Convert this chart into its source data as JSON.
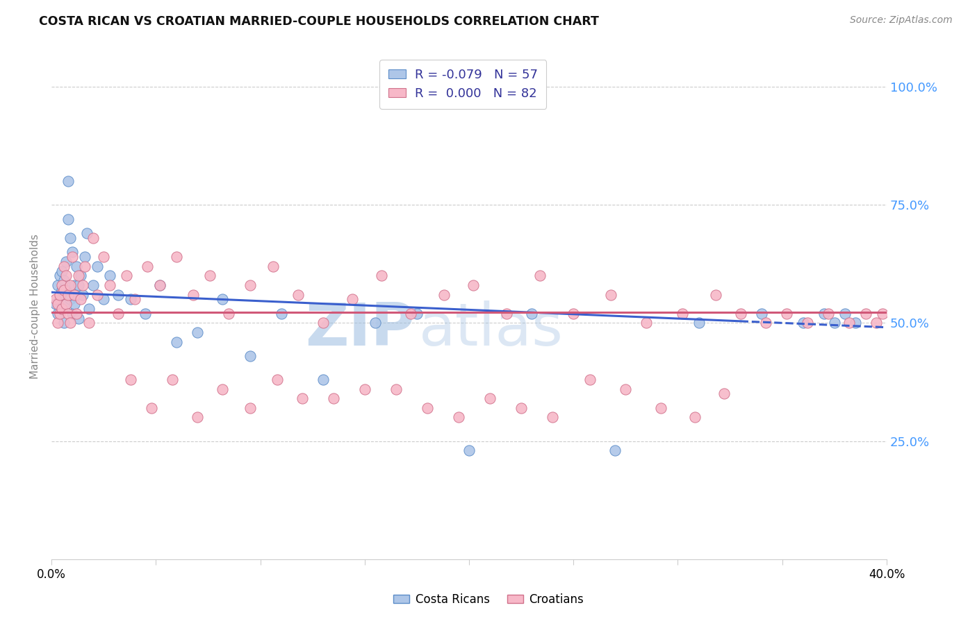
{
  "title": "COSTA RICAN VS CROATIAN MARRIED-COUPLE HOUSEHOLDS CORRELATION CHART",
  "source": "Source: ZipAtlas.com",
  "ylabel": "Married-couple Households",
  "yticks_labels": [
    "100.0%",
    "75.0%",
    "50.0%",
    "25.0%"
  ],
  "ytick_vals": [
    1.0,
    0.75,
    0.5,
    0.25
  ],
  "xmin": 0.0,
  "xmax": 0.4,
  "ymin": 0.0,
  "ymax": 1.07,
  "legend_r1": "R = -0.079",
  "legend_n1": "N = 57",
  "legend_r2": "R =  0.000",
  "legend_n2": "N = 82",
  "color_blue_fill": "#aec6e8",
  "color_blue_edge": "#5b8cc8",
  "color_pink_fill": "#f7b8c8",
  "color_pink_edge": "#d0708a",
  "trend_blue_color": "#3a5fcd",
  "trend_pink_color": "#d05878",
  "grid_color": "#cccccc",
  "watermark_zip": "ZIP",
  "watermark_atlas": "atlas",
  "watermark_color": "#9bbde0",
  "cr_x": [
    0.002,
    0.003,
    0.003,
    0.004,
    0.004,
    0.005,
    0.005,
    0.005,
    0.006,
    0.006,
    0.006,
    0.007,
    0.007,
    0.007,
    0.008,
    0.008,
    0.009,
    0.009,
    0.01,
    0.01,
    0.011,
    0.011,
    0.012,
    0.012,
    0.013,
    0.013,
    0.014,
    0.015,
    0.016,
    0.017,
    0.018,
    0.02,
    0.022,
    0.025,
    0.028,
    0.032,
    0.038,
    0.045,
    0.052,
    0.06,
    0.07,
    0.082,
    0.095,
    0.11,
    0.13,
    0.155,
    0.175,
    0.2,
    0.23,
    0.27,
    0.31,
    0.34,
    0.36,
    0.37,
    0.375,
    0.38,
    0.385
  ],
  "cr_y": [
    0.54,
    0.52,
    0.58,
    0.6,
    0.55,
    0.57,
    0.61,
    0.53,
    0.56,
    0.59,
    0.5,
    0.63,
    0.54,
    0.57,
    0.8,
    0.72,
    0.55,
    0.68,
    0.52,
    0.65,
    0.58,
    0.54,
    0.56,
    0.62,
    0.51,
    0.58,
    0.6,
    0.56,
    0.64,
    0.69,
    0.53,
    0.58,
    0.62,
    0.55,
    0.6,
    0.56,
    0.55,
    0.52,
    0.58,
    0.46,
    0.48,
    0.55,
    0.43,
    0.52,
    0.38,
    0.5,
    0.52,
    0.23,
    0.52,
    0.23,
    0.5,
    0.52,
    0.5,
    0.52,
    0.5,
    0.52,
    0.5
  ],
  "hr_x": [
    0.002,
    0.003,
    0.003,
    0.004,
    0.004,
    0.005,
    0.005,
    0.006,
    0.006,
    0.007,
    0.007,
    0.008,
    0.008,
    0.009,
    0.009,
    0.01,
    0.011,
    0.012,
    0.013,
    0.014,
    0.015,
    0.016,
    0.018,
    0.02,
    0.022,
    0.025,
    0.028,
    0.032,
    0.036,
    0.04,
    0.046,
    0.052,
    0.06,
    0.068,
    0.076,
    0.085,
    0.095,
    0.106,
    0.118,
    0.13,
    0.144,
    0.158,
    0.172,
    0.188,
    0.202,
    0.218,
    0.234,
    0.25,
    0.268,
    0.285,
    0.302,
    0.318,
    0.33,
    0.342,
    0.352,
    0.362,
    0.372,
    0.382,
    0.39,
    0.395,
    0.398,
    0.038,
    0.048,
    0.058,
    0.07,
    0.082,
    0.095,
    0.108,
    0.12,
    0.135,
    0.15,
    0.165,
    0.18,
    0.195,
    0.21,
    0.225,
    0.24,
    0.258,
    0.275,
    0.292,
    0.308,
    0.322
  ],
  "hr_y": [
    0.55,
    0.54,
    0.5,
    0.56,
    0.52,
    0.58,
    0.53,
    0.62,
    0.57,
    0.54,
    0.6,
    0.52,
    0.56,
    0.58,
    0.5,
    0.64,
    0.56,
    0.52,
    0.6,
    0.55,
    0.58,
    0.62,
    0.5,
    0.68,
    0.56,
    0.64,
    0.58,
    0.52,
    0.6,
    0.55,
    0.62,
    0.58,
    0.64,
    0.56,
    0.6,
    0.52,
    0.58,
    0.62,
    0.56,
    0.5,
    0.55,
    0.6,
    0.52,
    0.56,
    0.58,
    0.52,
    0.6,
    0.52,
    0.56,
    0.5,
    0.52,
    0.56,
    0.52,
    0.5,
    0.52,
    0.5,
    0.52,
    0.5,
    0.52,
    0.5,
    0.52,
    0.38,
    0.32,
    0.38,
    0.3,
    0.36,
    0.32,
    0.38,
    0.34,
    0.34,
    0.36,
    0.36,
    0.32,
    0.3,
    0.34,
    0.32,
    0.3,
    0.38,
    0.36,
    0.32,
    0.3,
    0.35
  ]
}
